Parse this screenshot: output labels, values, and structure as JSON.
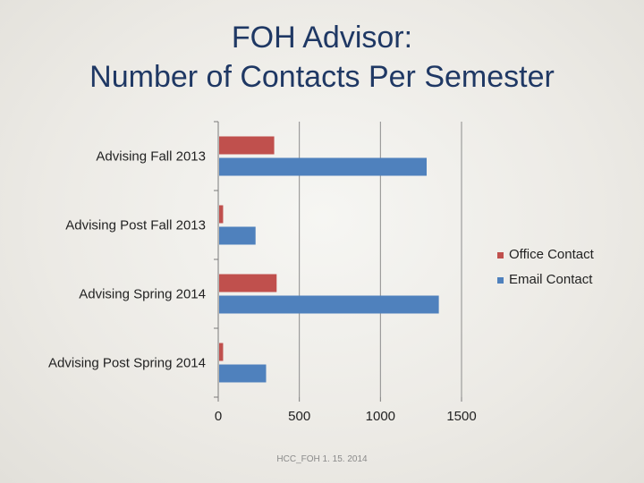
{
  "chart_data": {
    "type": "bar",
    "orientation": "horizontal",
    "title_lines": [
      "FOH Advisor:",
      "Number of Contacts Per Semester"
    ],
    "categories": [
      "Advising Fall 2013",
      "Advising Post Fall 2013",
      "Advising Spring 2014",
      "Advising Post Spring 2014"
    ],
    "series": [
      {
        "name": "Office Contact",
        "color": "#c0504d",
        "values": [
          345,
          30,
          360,
          30
        ]
      },
      {
        "name": "Email Contact",
        "color": "#4f81bd",
        "values": [
          1285,
          230,
          1360,
          295
        ]
      }
    ],
    "xlim": [
      0,
      1500
    ],
    "xticks": [
      0,
      500,
      1000,
      1500
    ],
    "grid": "vertical",
    "legend_position": "right"
  },
  "footer": "HCC_FOH 1. 15. 2014"
}
